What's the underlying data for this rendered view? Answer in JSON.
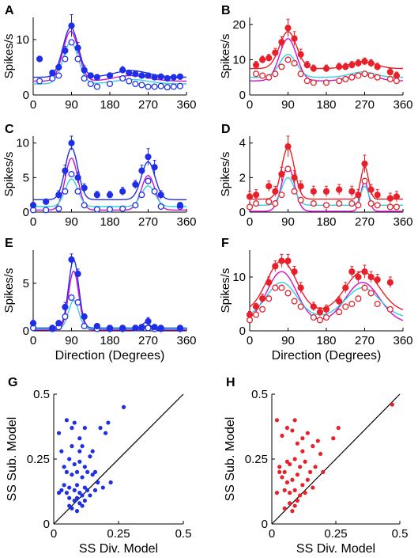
{
  "colors": {
    "blue": "#1f2fe6",
    "red": "#e8202a",
    "magenta": "#d010d0",
    "cyan": "#30d0e0",
    "black": "#000000"
  },
  "x_label": "Direction (Degrees)",
  "chart_data": [
    {
      "letter": "A",
      "type": "line",
      "color": "blue",
      "ylabel": "Spikes/s",
      "xlim": [
        0,
        360
      ],
      "ylim": [
        0,
        14
      ],
      "xticks": [
        "0",
        "90",
        "180",
        "270",
        "360"
      ],
      "yticks": [
        "0",
        "10"
      ],
      "ytick_values": [
        0,
        10
      ],
      "x": [
        15,
        45,
        60,
        75,
        90,
        105,
        120,
        135,
        150,
        180,
        210,
        225,
        240,
        255,
        270,
        285,
        300,
        315,
        330,
        345
      ],
      "filled": [
        6.5,
        4.0,
        5.0,
        8.0,
        12.5,
        8.5,
        4.5,
        3.5,
        3.2,
        3.5,
        4.5,
        4.0,
        3.8,
        3.5,
        3.5,
        3.2,
        3.3,
        3.0,
        3.2,
        3.3
      ],
      "filled_err": [
        0.5,
        0.5,
        0.5,
        0.8,
        2.0,
        1.0,
        0.8,
        0.5,
        0.5,
        0.5,
        0.6,
        0.5,
        0.5,
        0.4,
        0.4,
        0.4,
        0.4,
        0.4,
        0.4,
        0.4
      ],
      "open": [
        2.5,
        3.0,
        3.5,
        6.5,
        9.5,
        6.5,
        3.0,
        2.0,
        1.5,
        2.0,
        3.0,
        2.5,
        2.0,
        1.8,
        1.5,
        1.5,
        1.6,
        1.4,
        1.5,
        1.6
      ],
      "fits": [
        {
          "color": "blue",
          "base": 3.2,
          "a1": 9.0,
          "mu1": 88,
          "s1": 18,
          "a2": 1.2,
          "mu2": 230,
          "s2": 40
        },
        {
          "color": "magenta",
          "base": 2.5,
          "a1": 9.0,
          "mu1": 88,
          "s1": 18,
          "a2": 1.0,
          "mu2": 230,
          "s2": 40
        },
        {
          "color": "cyan",
          "base": 2.0,
          "a1": 7.5,
          "mu1": 88,
          "s1": 18,
          "a2": 0.8,
          "mu2": 230,
          "s2": 40
        }
      ]
    },
    {
      "letter": "B",
      "type": "line",
      "color": "red",
      "ylabel": "Spikes/s",
      "xlim": [
        0,
        360
      ],
      "ylim": [
        0,
        22
      ],
      "xticks": [
        "0",
        "90",
        "180",
        "270",
        "360"
      ],
      "yticks": [
        "0",
        "10",
        "20"
      ],
      "ytick_values": [
        0,
        10,
        20
      ],
      "x": [
        15,
        30,
        45,
        60,
        75,
        90,
        105,
        120,
        135,
        150,
        180,
        210,
        225,
        240,
        255,
        270,
        285,
        300,
        330,
        345
      ],
      "filled": [
        8.5,
        10.0,
        10.5,
        12.0,
        15.0,
        19.0,
        16.0,
        11.5,
        8.5,
        7.5,
        7.5,
        8.0,
        8.0,
        8.5,
        9.0,
        9.5,
        9.0,
        8.0,
        6.5,
        5.5
      ],
      "filled_err": [
        1.0,
        1.0,
        1.0,
        1.2,
        1.5,
        2.5,
        2.0,
        1.5,
        1.0,
        1.0,
        1.0,
        1.0,
        1.0,
        1.0,
        1.0,
        1.0,
        1.0,
        1.0,
        1.0,
        1.0
      ],
      "open": [
        6.0,
        5.5,
        5.0,
        6.0,
        8.0,
        10.0,
        9.0,
        6.0,
        4.0,
        3.5,
        3.5,
        4.0,
        4.5,
        5.0,
        5.5,
        6.0,
        5.5,
        5.0,
        4.5,
        4.0
      ],
      "fits": [
        {
          "color": "red",
          "base": 7.5,
          "a1": 10.5,
          "mu1": 90,
          "s1": 20,
          "a2": 2.0,
          "mu2": 265,
          "s2": 30
        },
        {
          "color": "magenta",
          "base": 4.0,
          "a1": 12.0,
          "mu1": 90,
          "s1": 20,
          "a2": 2.0,
          "mu2": 265,
          "s2": 30
        },
        {
          "color": "cyan",
          "base": 5.0,
          "a1": 6.5,
          "mu1": 90,
          "s1": 20,
          "a2": 1.5,
          "mu2": 265,
          "s2": 30
        }
      ]
    },
    {
      "letter": "C",
      "type": "line",
      "color": "blue",
      "ylabel": "Spikes/s",
      "xlim": [
        0,
        360
      ],
      "ylim": [
        0,
        11
      ],
      "xticks": [
        "0",
        "90",
        "180",
        "270",
        "360"
      ],
      "yticks": [
        "0",
        "5",
        "10"
      ],
      "ytick_values": [
        0,
        5,
        10
      ],
      "x": [
        0,
        30,
        60,
        75,
        90,
        105,
        120,
        150,
        180,
        210,
        240,
        255,
        270,
        285,
        300,
        345
      ],
      "filled": [
        1.0,
        1.5,
        2.5,
        6.0,
        10.0,
        5.0,
        3.5,
        2.5,
        2.5,
        3.0,
        4.0,
        6.0,
        8.0,
        6.5,
        2.5,
        1.0
      ],
      "filled_err": [
        0.4,
        0.4,
        0.6,
        0.8,
        1.0,
        0.8,
        0.6,
        0.5,
        0.5,
        0.6,
        0.6,
        0.8,
        1.2,
        1.0,
        0.6,
        0.4
      ],
      "open": [
        0.3,
        0.3,
        0.5,
        3.0,
        5.5,
        3.0,
        1.0,
        0.4,
        0.4,
        0.5,
        1.0,
        2.5,
        4.5,
        3.0,
        0.8,
        0.8
      ],
      "fits": [
        {
          "color": "blue",
          "base": 1.8,
          "a1": 7.5,
          "mu1": 90,
          "s1": 15,
          "a2": 5.5,
          "mu2": 270,
          "s2": 16
        },
        {
          "color": "magenta",
          "base": 0.3,
          "a1": 7.5,
          "mu1": 90,
          "s1": 15,
          "a2": 5.0,
          "mu2": 270,
          "s2": 16
        },
        {
          "color": "cyan",
          "base": 0.8,
          "a1": 4.0,
          "mu1": 90,
          "s1": 15,
          "a2": 3.0,
          "mu2": 270,
          "s2": 16
        }
      ]
    },
    {
      "letter": "D",
      "type": "line",
      "color": "red",
      "ylabel": "Spikes/s",
      "xlim": [
        0,
        360
      ],
      "ylim": [
        0,
        4.4
      ],
      "xticks": [
        "0",
        "90",
        "180",
        "270",
        "360"
      ],
      "yticks": [
        "0",
        "2",
        "4"
      ],
      "ytick_values": [
        0,
        2,
        4
      ],
      "x": [
        0,
        15,
        45,
        60,
        75,
        90,
        105,
        120,
        150,
        180,
        210,
        240,
        255,
        270,
        285,
        300,
        330,
        345
      ],
      "filled": [
        0.9,
        1.0,
        1.5,
        1.2,
        2.2,
        3.8,
        2.0,
        1.5,
        1.2,
        1.2,
        1.3,
        1.2,
        1.0,
        2.8,
        1.3,
        1.0,
        0.8,
        0.9
      ],
      "filled_err": [
        0.3,
        0.3,
        0.3,
        0.3,
        0.4,
        0.6,
        0.4,
        0.3,
        0.3,
        0.3,
        0.3,
        0.3,
        0.3,
        0.5,
        0.3,
        0.3,
        0.3,
        0.3
      ],
      "open": [
        0.3,
        0.5,
        0.6,
        0.5,
        1.0,
        2.5,
        1.2,
        0.7,
        0.5,
        0.4,
        0.5,
        0.5,
        0.4,
        1.8,
        0.5,
        0.4,
        0.3,
        0.3
      ],
      "fits": [
        {
          "color": "red",
          "base": 0.75,
          "a1": 3.0,
          "mu1": 90,
          "s1": 15,
          "a2": 1.9,
          "mu2": 270,
          "s2": 9
        },
        {
          "color": "magenta",
          "base": 0.05,
          "a1": 2.6,
          "mu1": 90,
          "s1": 15,
          "a2": 1.7,
          "mu2": 270,
          "s2": 9
        },
        {
          "color": "cyan",
          "base": 0.4,
          "a1": 1.6,
          "mu1": 90,
          "s1": 15,
          "a2": 1.1,
          "mu2": 270,
          "s2": 9
        }
      ]
    },
    {
      "letter": "E",
      "type": "line",
      "color": "blue",
      "ylabel": "Spikes/s",
      "xlim": [
        0,
        360
      ],
      "ylim": [
        0,
        8.5
      ],
      "xticks": [
        "0",
        "90",
        "180",
        "270",
        "360"
      ],
      "yticks": [
        "0",
        "5"
      ],
      "ytick_values": [
        0,
        5
      ],
      "x": [
        0,
        45,
        60,
        75,
        90,
        105,
        120,
        150,
        180,
        210,
        240,
        255,
        270,
        285,
        300,
        345
      ],
      "filled": [
        0.8,
        0.3,
        0.8,
        2.5,
        7.5,
        6.0,
        1.5,
        0.5,
        0.3,
        0.3,
        0.3,
        0.4,
        1.0,
        0.4,
        0.3,
        0.3
      ],
      "filled_err": [
        0.3,
        0.2,
        0.3,
        0.5,
        0.6,
        0.5,
        0.3,
        0.2,
        0.2,
        0.2,
        0.2,
        0.2,
        0.4,
        0.2,
        0.2,
        0.2
      ],
      "open": [
        0.3,
        0.2,
        0.4,
        1.5,
        3.5,
        3.0,
        0.5,
        0.2,
        0.2,
        0.2,
        0.3,
        0.3,
        0.3,
        0.2,
        0.2,
        0.2
      ],
      "fits": [
        {
          "color": "blue",
          "base": 0.3,
          "a1": 7.2,
          "mu1": 95,
          "s1": 12,
          "a2": 0.6,
          "mu2": 265,
          "s2": 8
        },
        {
          "color": "magenta",
          "base": 0.1,
          "a1": 6.2,
          "mu1": 95,
          "s1": 12,
          "a2": 0.4,
          "mu2": 265,
          "s2": 8
        },
        {
          "color": "cyan",
          "base": 0.2,
          "a1": 3.0,
          "mu1": 95,
          "s1": 12,
          "a2": 0.2,
          "mu2": 265,
          "s2": 8
        }
      ]
    },
    {
      "letter": "F",
      "type": "line",
      "color": "red",
      "ylabel": "Spikes/s",
      "xlim": [
        0,
        360
      ],
      "ylim": [
        0,
        15
      ],
      "xticks": [
        "0",
        "90",
        "180",
        "270",
        "360"
      ],
      "yticks": [
        "0",
        "10"
      ],
      "ytick_values": [
        0,
        10
      ],
      "x": [
        0,
        15,
        30,
        45,
        60,
        75,
        90,
        105,
        120,
        150,
        165,
        180,
        210,
        225,
        240,
        255,
        270,
        285,
        300,
        330
      ],
      "filled": [
        3.0,
        4.5,
        6.0,
        9.0,
        12.0,
        13.0,
        13.0,
        11.0,
        8.0,
        4.5,
        3.5,
        4.0,
        5.5,
        8.0,
        11.0,
        10.0,
        11.0,
        10.0,
        9.5,
        9.0
      ],
      "filled_err": [
        0.6,
        0.6,
        0.8,
        1.0,
        1.0,
        1.2,
        1.2,
        1.0,
        1.0,
        0.8,
        0.8,
        0.8,
        0.8,
        1.0,
        1.0,
        1.0,
        1.2,
        1.0,
        1.0,
        1.0
      ],
      "open": [
        2.0,
        3.0,
        4.0,
        6.0,
        8.0,
        8.0,
        7.0,
        5.5,
        4.5,
        2.5,
        2.0,
        2.5,
        3.5,
        4.5,
        5.0,
        6.0,
        8.0,
        7.0,
        5.0,
        4.0
      ],
      "fits": [
        {
          "color": "red",
          "base": 3.5,
          "a1": 9.5,
          "mu1": 75,
          "s1": 35,
          "a2": 7.5,
          "mu2": 265,
          "s2": 40
        },
        {
          "color": "magenta",
          "base": 1.5,
          "a1": 9.5,
          "mu1": 75,
          "s1": 35,
          "a2": 7.5,
          "mu2": 265,
          "s2": 40
        },
        {
          "color": "cyan",
          "base": 2.5,
          "a1": 6.5,
          "mu1": 75,
          "s1": 35,
          "a2": 5.5,
          "mu2": 265,
          "s2": 40
        }
      ]
    },
    {
      "letter": "G",
      "type": "scatter",
      "color": "blue",
      "xlabel": "SS Div. Model",
      "ylabel": "SS Sub. Model",
      "xlim": [
        0,
        0.5
      ],
      "ylim": [
        0,
        0.5
      ],
      "xticks": [
        "0",
        "0.25",
        "0.5"
      ],
      "yticks": [
        "0",
        "0.25",
        "0.5"
      ],
      "tick_values": [
        0,
        0.25,
        0.5
      ],
      "points": [
        [
          0.02,
          0.35
        ],
        [
          0.03,
          0.28
        ],
        [
          0.05,
          0.4
        ],
        [
          0.07,
          0.37
        ],
        [
          0.08,
          0.39
        ],
        [
          0.1,
          0.33
        ],
        [
          0.12,
          0.37
        ],
        [
          0.11,
          0.3
        ],
        [
          0.15,
          0.28
        ],
        [
          0.14,
          0.26
        ],
        [
          0.18,
          0.37
        ],
        [
          0.2,
          0.35
        ],
        [
          0.27,
          0.45
        ],
        [
          0.21,
          0.39
        ],
        [
          0.06,
          0.25
        ],
        [
          0.08,
          0.23
        ],
        [
          0.1,
          0.24
        ],
        [
          0.12,
          0.22
        ],
        [
          0.05,
          0.2
        ],
        [
          0.07,
          0.19
        ],
        [
          0.09,
          0.2
        ],
        [
          0.11,
          0.18
        ],
        [
          0.13,
          0.2
        ],
        [
          0.15,
          0.19
        ],
        [
          0.17,
          0.16
        ],
        [
          0.19,
          0.14
        ],
        [
          0.22,
          0.16
        ],
        [
          0.04,
          0.15
        ],
        [
          0.06,
          0.14
        ],
        [
          0.08,
          0.13
        ],
        [
          0.1,
          0.12
        ],
        [
          0.12,
          0.14
        ],
        [
          0.14,
          0.11
        ],
        [
          0.06,
          0.1
        ],
        [
          0.08,
          0.09
        ],
        [
          0.1,
          0.08
        ],
        [
          0.12,
          0.09
        ],
        [
          0.07,
          0.06
        ],
        [
          0.09,
          0.05
        ],
        [
          0.11,
          0.07
        ],
        [
          0.05,
          0.12
        ],
        [
          0.09,
          0.15
        ],
        [
          0.03,
          0.13
        ],
        [
          0.13,
          0.13
        ],
        [
          0.16,
          0.2
        ],
        [
          0.1,
          0.28
        ],
        [
          0.04,
          0.22
        ],
        [
          0.02,
          0.12
        ],
        [
          0.07,
          0.3
        ],
        [
          0.09,
          0.1
        ],
        [
          0.11,
          0.11
        ],
        [
          0.06,
          0.07
        ],
        [
          0.16,
          0.13
        ]
      ]
    },
    {
      "letter": "H",
      "type": "scatter",
      "color": "red",
      "xlabel": "SS Div. Model",
      "ylabel": "SS Sub. Model",
      "xlim": [
        0,
        0.5
      ],
      "ylim": [
        0,
        0.5
      ],
      "xticks": [
        "0",
        "0.25",
        "0.5"
      ],
      "yticks": [
        "0",
        "0.25",
        "0.5"
      ],
      "tick_values": [
        0,
        0.25,
        0.5
      ],
      "points": [
        [
          0.02,
          0.4
        ],
        [
          0.04,
          0.34
        ],
        [
          0.06,
          0.37
        ],
        [
          0.08,
          0.36
        ],
        [
          0.09,
          0.4
        ],
        [
          0.12,
          0.33
        ],
        [
          0.14,
          0.35
        ],
        [
          0.1,
          0.31
        ],
        [
          0.18,
          0.32
        ],
        [
          0.26,
          0.37
        ],
        [
          0.24,
          0.33
        ],
        [
          0.47,
          0.46
        ],
        [
          0.03,
          0.22
        ],
        [
          0.05,
          0.2
        ],
        [
          0.06,
          0.24
        ],
        [
          0.07,
          0.23
        ],
        [
          0.09,
          0.25
        ],
        [
          0.11,
          0.22
        ],
        [
          0.13,
          0.24
        ],
        [
          0.15,
          0.2
        ],
        [
          0.17,
          0.22
        ],
        [
          0.2,
          0.2
        ],
        [
          0.04,
          0.18
        ],
        [
          0.06,
          0.16
        ],
        [
          0.08,
          0.17
        ],
        [
          0.1,
          0.19
        ],
        [
          0.12,
          0.15
        ],
        [
          0.14,
          0.17
        ],
        [
          0.05,
          0.13
        ],
        [
          0.07,
          0.12
        ],
        [
          0.09,
          0.13
        ],
        [
          0.11,
          0.11
        ],
        [
          0.13,
          0.12
        ],
        [
          0.16,
          0.14
        ],
        [
          0.07,
          0.08
        ],
        [
          0.09,
          0.07
        ],
        [
          0.05,
          0.06
        ],
        [
          0.08,
          0.05
        ],
        [
          0.1,
          0.09
        ],
        [
          0.02,
          0.12
        ],
        [
          0.12,
          0.28
        ],
        [
          0.16,
          0.3
        ],
        [
          0.19,
          0.27
        ],
        [
          0.03,
          0.2
        ]
      ]
    }
  ]
}
